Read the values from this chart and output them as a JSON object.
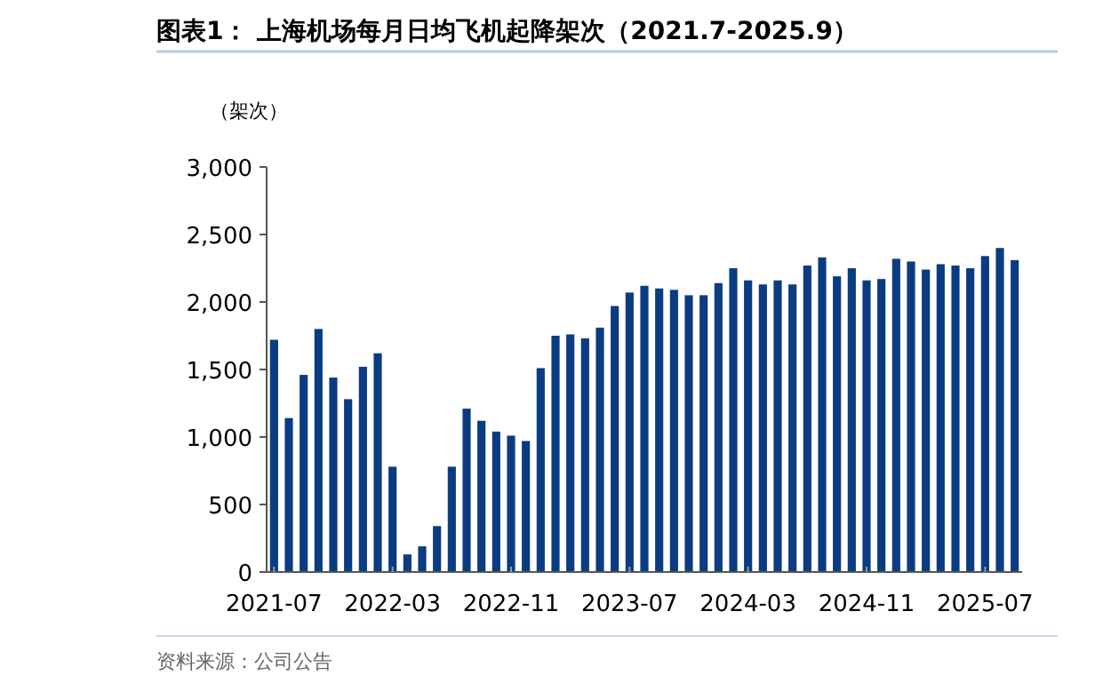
{
  "chart_data": {
    "type": "bar",
    "title": "图表1：  上海机场每月日均飞机起降架次（2021.7-2025.9）",
    "ylabel": "（架次）",
    "annotations": [
      "资料来源：公司公告"
    ],
    "categories": [
      "2021-07",
      null,
      null,
      null,
      null,
      null,
      null,
      null,
      "2022-03",
      null,
      null,
      null,
      null,
      null,
      null,
      null,
      "2022-11",
      null,
      null,
      null,
      null,
      null,
      null,
      null,
      "2023-07",
      null,
      null,
      null,
      null,
      null,
      null,
      null,
      "2024-03",
      null,
      null,
      null,
      null,
      null,
      null,
      null,
      "2024-11",
      null,
      null,
      null,
      null,
      null,
      null,
      null,
      "2025-07",
      null,
      null
    ],
    "values": [
      1720,
      1140,
      1460,
      1800,
      1440,
      1280,
      1520,
      1620,
      780,
      130,
      190,
      340,
      780,
      1210,
      1120,
      1040,
      1010,
      970,
      1510,
      1750,
      1760,
      1730,
      1810,
      1970,
      2070,
      2120,
      2100,
      2090,
      2050,
      2050,
      2140,
      2250,
      2160,
      2130,
      2160,
      2130,
      2270,
      2330,
      2190,
      2250,
      2160,
      2170,
      2320,
      2300,
      2240,
      2280,
      2270,
      2250,
      2340,
      2400,
      2310
    ],
    "color": "#0b3c82",
    "ylim": [
      0,
      3000
    ],
    "yticks": [
      0,
      500,
      {
        "value": 1000,
        "label": "1,000"
      },
      {
        "value": 1500,
        "label": "1,500"
      },
      {
        "value": 2000,
        "label": "2,000"
      },
      {
        "value": 2500,
        "label": "2,500"
      },
      {
        "value": 3000,
        "label": "3,000"
      }
    ]
  }
}
